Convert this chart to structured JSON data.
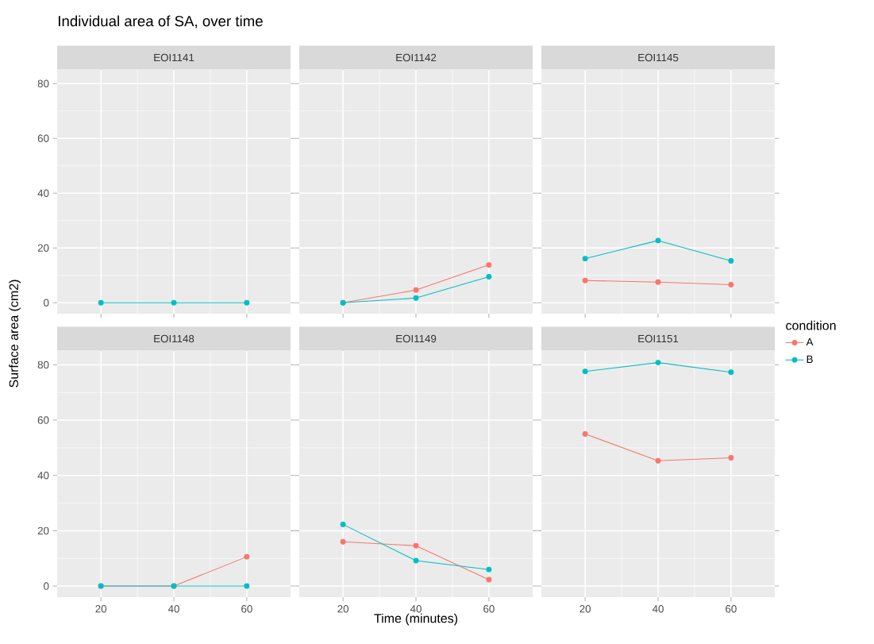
{
  "chart_data": [
    {
      "type": "line",
      "title": "Individual area of SA, over time",
      "subtitle": "EOI1141",
      "x": [
        20,
        40,
        60
      ],
      "xlim": [
        8,
        72
      ],
      "xticks": [
        20,
        40,
        60
      ],
      "ylim": [
        -4,
        85
      ],
      "yticks": [
        0,
        20,
        40,
        60,
        80
      ],
      "grid": true,
      "marker": "circle",
      "tick_labels": "y",
      "series": [
        {
          "color": "#f8766d",
          "values": [
            null,
            null,
            null
          ]
        },
        {
          "color": "#00bfc4",
          "values": [
            0,
            0,
            0
          ]
        }
      ]
    },
    {
      "type": "line",
      "subtitle": "EOI1142",
      "x": [
        20,
        40,
        60
      ],
      "xlim": [
        8,
        72
      ],
      "xticks": [
        20,
        40,
        60
      ],
      "ylim": [
        -4,
        85
      ],
      "yticks": [
        0,
        20,
        40,
        60,
        80
      ],
      "grid": true,
      "marker": "circle",
      "tick_labels": false,
      "series": [
        {
          "color": "#f8766d",
          "values": [
            0,
            4.6,
            13.8
          ]
        },
        {
          "color": "#00bfc4",
          "values": [
            0,
            1.7,
            9.5
          ]
        }
      ]
    },
    {
      "type": "line",
      "subtitle": "EOI1145",
      "x": [
        20,
        40,
        60
      ],
      "xlim": [
        8,
        72
      ],
      "xticks": [
        20,
        40,
        60
      ],
      "ylim": [
        -4,
        85
      ],
      "yticks": [
        0,
        20,
        40,
        60,
        80
      ],
      "grid": true,
      "marker": "circle",
      "tick_labels": false,
      "series": [
        {
          "color": "#f8766d",
          "values": [
            8.1,
            7.5,
            6.6
          ]
        },
        {
          "color": "#00bfc4",
          "values": [
            16.1,
            22.7,
            15.3
          ]
        }
      ]
    },
    {
      "type": "line",
      "subtitle": "EOI1148",
      "ylabel": "Surface area (cm2)",
      "x": [
        20,
        40,
        60
      ],
      "xlim": [
        8,
        72
      ],
      "xticks": [
        20,
        40,
        60
      ],
      "ylim": [
        -4,
        85
      ],
      "yticks": [
        0,
        20,
        40,
        60,
        80
      ],
      "grid": true,
      "marker": "circle",
      "series": [
        {
          "color": "#f8766d",
          "values": [
            0,
            0,
            10.6
          ]
        },
        {
          "color": "#00bfc4",
          "values": [
            0,
            0,
            0
          ]
        }
      ]
    },
    {
      "type": "line",
      "subtitle": "EOI1149",
      "xlabel": "Time (minutes)",
      "x": [
        20,
        40,
        60
      ],
      "xlim": [
        8,
        72
      ],
      "xticks": [
        20,
        40,
        60
      ],
      "ylim": [
        -4,
        85
      ],
      "yticks": [
        0,
        20,
        40,
        60,
        80
      ],
      "grid": true,
      "marker": "circle",
      "tick_labels": "x",
      "series": [
        {
          "color": "#f8766d",
          "values": [
            16.0,
            14.6,
            2.3
          ]
        },
        {
          "color": "#00bfc4",
          "values": [
            22.3,
            9.2,
            6.0
          ]
        }
      ]
    },
    {
      "type": "line",
      "subtitle": "EOI1151",
      "x": [
        20,
        40,
        60
      ],
      "xlim": [
        8,
        72
      ],
      "xticks": [
        20,
        40,
        60
      ],
      "ylim": [
        -4,
        85
      ],
      "yticks": [
        0,
        20,
        40,
        60,
        80
      ],
      "grid": true,
      "marker": "circle",
      "tick_labels": "x",
      "legend": "right",
      "legend_title": "condition",
      "series": [
        {
          "name": "A",
          "color": "#f8766d",
          "values": [
            55.0,
            45.3,
            46.4
          ]
        },
        {
          "name": "B",
          "color": "#00bfc4",
          "values": [
            77.6,
            80.8,
            77.3
          ]
        }
      ]
    }
  ]
}
